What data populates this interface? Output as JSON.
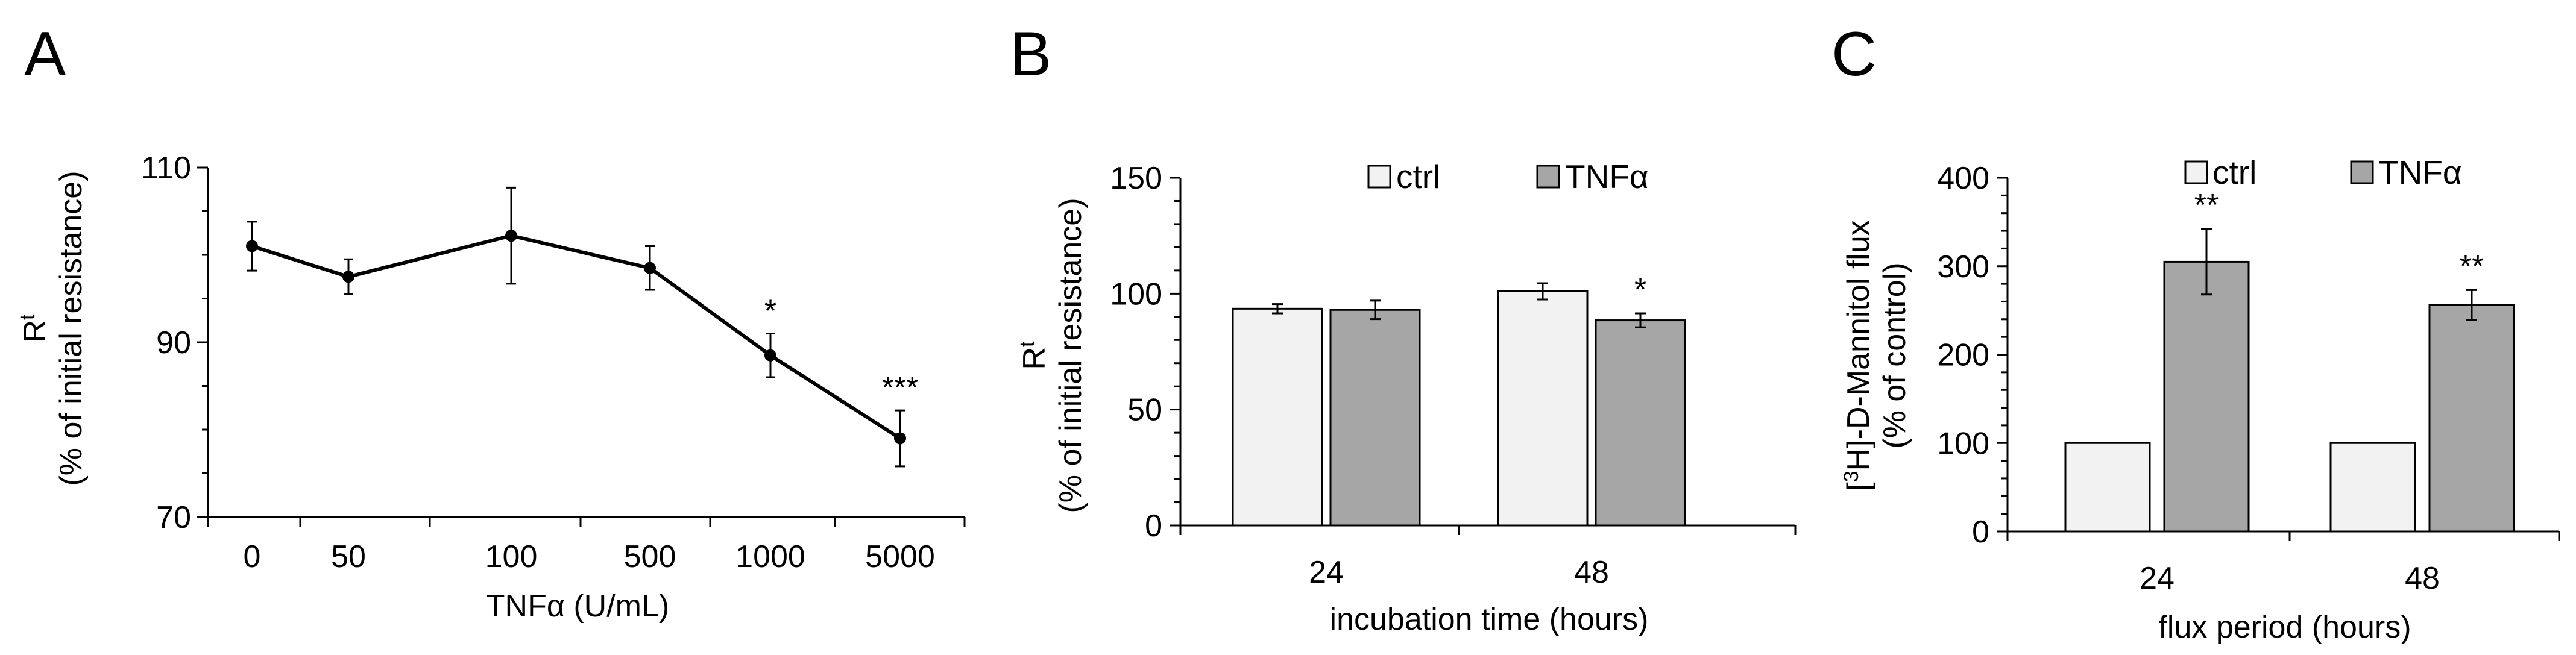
{
  "colors": {
    "ctrl": "#f2f2f2",
    "tnf": "#a6a6a6",
    "line": "#000000"
  },
  "chart_data": [
    {
      "panel": "A",
      "type": "line",
      "categories": [
        "0",
        "50",
        "100",
        "500",
        "1000",
        "5000"
      ],
      "values": [
        101,
        97.5,
        102.2,
        98.5,
        88.5,
        79
      ],
      "errors": [
        2.8,
        2.0,
        5.5,
        2.5,
        2.5,
        3.2
      ],
      "significance": [
        "",
        "",
        "",
        "",
        "*",
        "***"
      ],
      "ylim": [
        70,
        110
      ],
      "yticks": [
        70,
        90,
        110
      ],
      "ylabel_line1": "R",
      "ylabel_sup": "t",
      "ylabel_line2": "(% of initial resistance)",
      "xlabel": "TNFα (U/mL)",
      "grid": false
    },
    {
      "panel": "B",
      "type": "bar",
      "categories": [
        "24",
        "48"
      ],
      "series": [
        {
          "name": "ctrl",
          "values": [
            93.5,
            101
          ],
          "errors": [
            2,
            3.5
          ],
          "significance": [
            "",
            ""
          ]
        },
        {
          "name": "TNFα",
          "values": [
            93,
            88.5
          ],
          "errors": [
            4,
            3
          ],
          "significance": [
            "",
            "*"
          ]
        }
      ],
      "ylim": [
        0,
        150
      ],
      "yticks": [
        0,
        50,
        100,
        150
      ],
      "ylabel_line1": "R",
      "ylabel_sup": "t",
      "ylabel_line2": "(% of initial resistance)",
      "xlabel": "incubation time (hours)",
      "legend": "top"
    },
    {
      "panel": "C",
      "type": "bar",
      "categories": [
        "24",
        "48"
      ],
      "series": [
        {
          "name": "ctrl",
          "values": [
            100,
            100
          ],
          "errors": [
            0,
            0
          ],
          "significance": [
            "",
            ""
          ]
        },
        {
          "name": "TNFα",
          "values": [
            305,
            256
          ],
          "errors": [
            37,
            17
          ],
          "significance": [
            "**",
            "**"
          ]
        }
      ],
      "ylim": [
        0,
        400
      ],
      "yticks": [
        0,
        100,
        200,
        300,
        400
      ],
      "ylabel_pre": "[",
      "ylabel_sup": "3",
      "ylabel_post": "H]-D-Mannitol flux",
      "ylabel_line2": "(% of control)",
      "xlabel": "flux period (hours)",
      "legend": "top"
    }
  ]
}
